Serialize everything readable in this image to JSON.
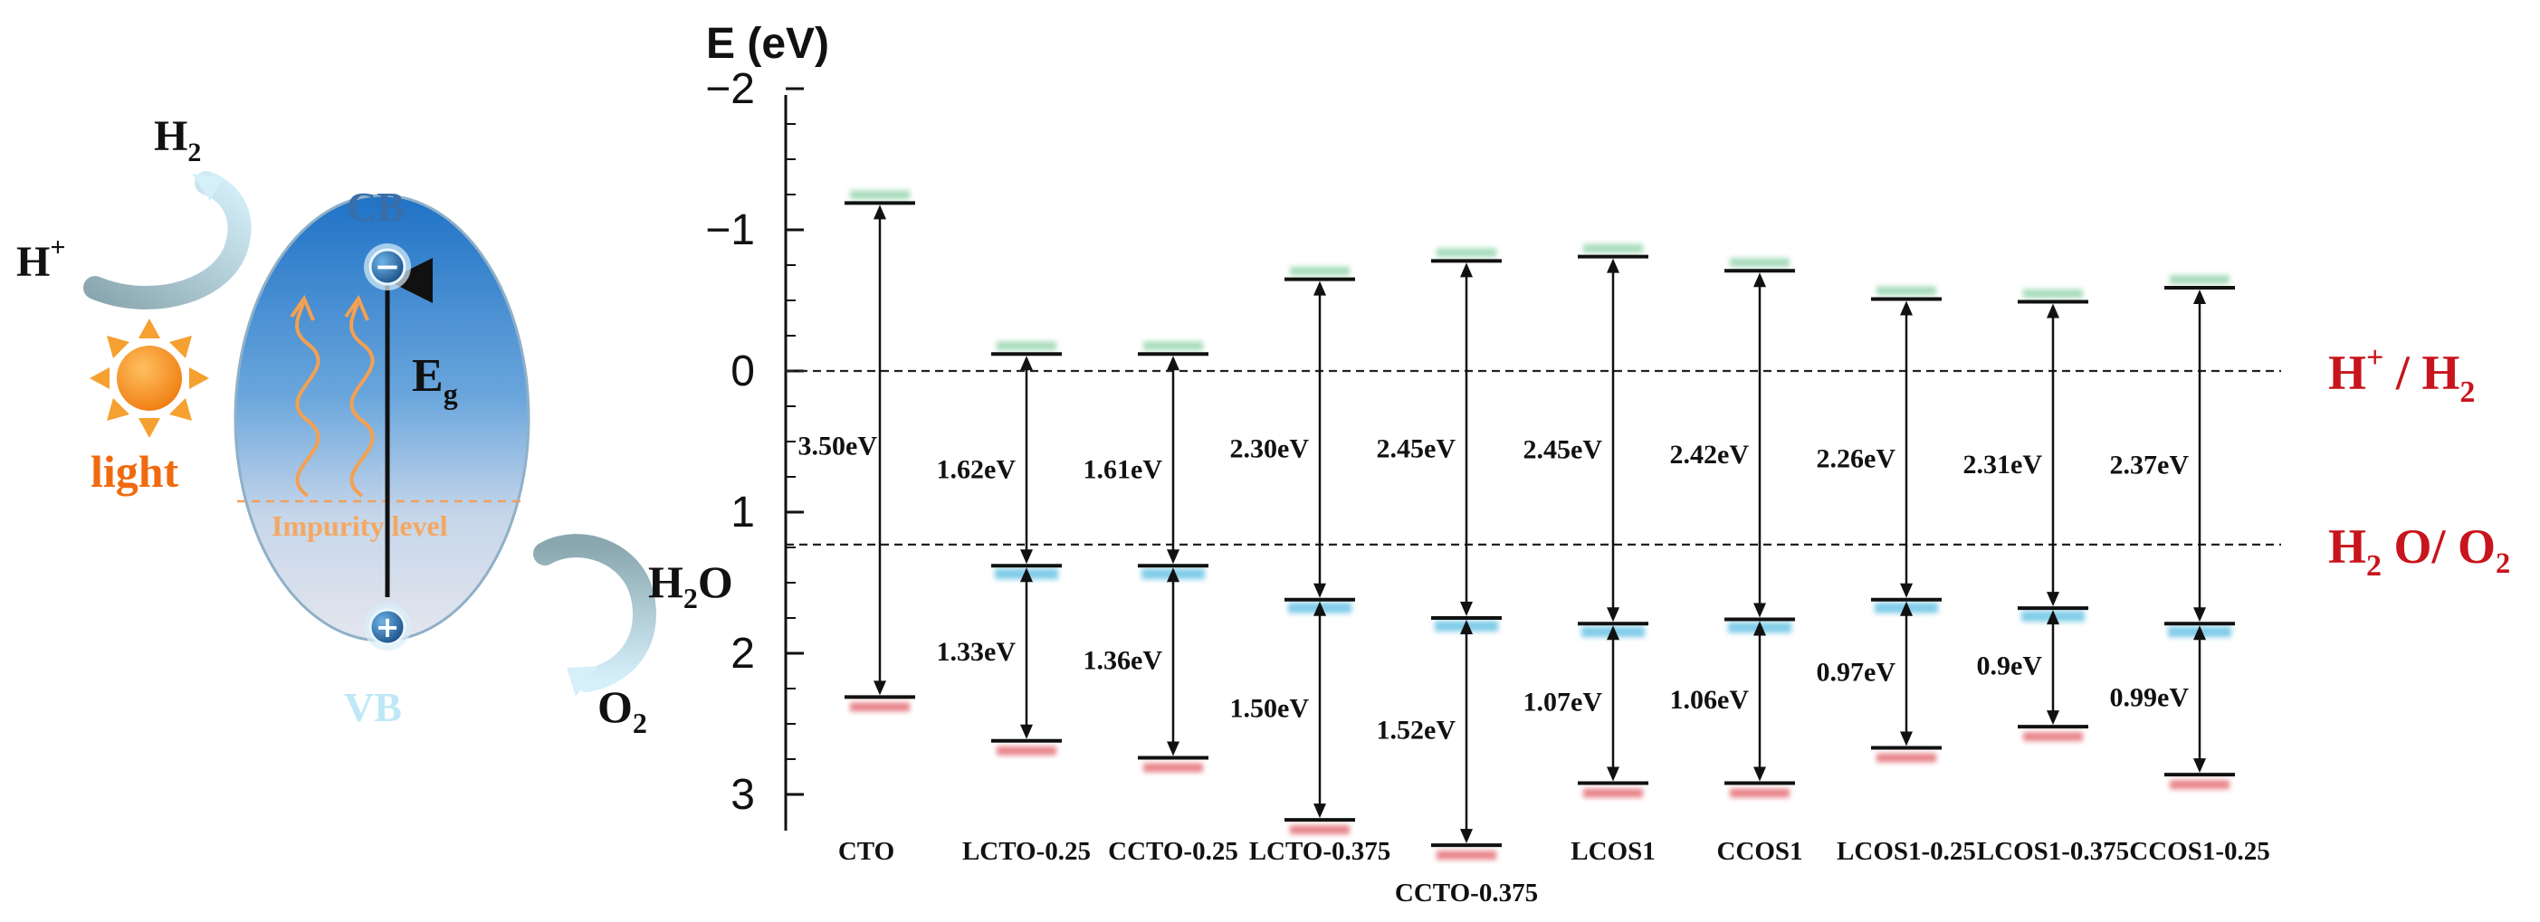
{
  "schematic": {
    "h2": "H",
    "h2_sub": "2",
    "h_plus": "H",
    "h_plus_sup": "+",
    "light": "light",
    "cb": "CB",
    "vb": "VB",
    "eg": "E",
    "eg_sub": "g",
    "impurity": "Impurity level",
    "h2o": "H",
    "h2o_sub": "2",
    "h2o_end": "O",
    "o2": "O",
    "o2_sub": "2",
    "minus_symbol": "−",
    "plus_symbol": "+"
  },
  "axis": {
    "title": "E (eV)",
    "ylim": [
      -2,
      3.25
    ],
    "ticks": [
      {
        "value": -2,
        "label": "−2"
      },
      {
        "value": -1,
        "label": "−1"
      },
      {
        "value": 0,
        "label": "0"
      },
      {
        "value": 1,
        "label": "1"
      },
      {
        "value": 2,
        "label": "2"
      },
      {
        "value": 3,
        "label": "3"
      }
    ]
  },
  "reference_levels": [
    {
      "value": 0,
      "prefix": "H",
      "sup": "+",
      "suffix": " / H",
      "sub": "2",
      "tail": ""
    },
    {
      "value": 1.23,
      "prefix": "H",
      "sup": "",
      "suffix": "",
      "sub": "2",
      "tail": " O/ O₂"
    }
  ],
  "materials": [
    {
      "name": "CTO",
      "cb": -1.19,
      "vb": 2.31,
      "impurity": null,
      "gap_total": "3.50eV",
      "gap_upper": null,
      "gap_lower": null,
      "label_drop": false
    },
    {
      "name": "LCTO-0.25",
      "cb": -0.12,
      "vb": 2.62,
      "impurity": 1.38,
      "gap_total": null,
      "gap_upper": "1.62eV",
      "gap_lower": "1.33eV",
      "label_drop": false
    },
    {
      "name": "CCTO-0.25",
      "cb": -0.12,
      "vb": 2.74,
      "impurity": 1.38,
      "gap_total": null,
      "gap_upper": "1.61eV",
      "gap_lower": "1.36eV",
      "label_drop": false
    },
    {
      "name": "LCTO-0.375",
      "cb": -0.65,
      "vb": 3.18,
      "impurity": 1.62,
      "gap_total": null,
      "gap_upper": "2.30eV",
      "gap_lower": "1.50eV",
      "label_drop": false
    },
    {
      "name": "CCTO-0.375",
      "cb": -0.78,
      "vb": 3.36,
      "impurity": 1.75,
      "gap_total": null,
      "gap_upper": "2.45eV",
      "gap_lower": "1.52eV",
      "label_drop": true
    },
    {
      "name": "LCOS1",
      "cb": -0.81,
      "vb": 2.92,
      "impurity": 1.79,
      "gap_total": null,
      "gap_upper": "2.45eV",
      "gap_lower": "1.07eV",
      "label_drop": false
    },
    {
      "name": "CCOS1",
      "cb": -0.71,
      "vb": 2.92,
      "impurity": 1.76,
      "gap_total": null,
      "gap_upper": "2.42eV",
      "gap_lower": "1.06eV",
      "label_drop": false
    },
    {
      "name": "LCOS1-0.25",
      "cb": -0.51,
      "vb": 2.67,
      "impurity": 1.62,
      "gap_total": null,
      "gap_upper": "2.26eV",
      "gap_lower": "0.97eV",
      "label_drop": false
    },
    {
      "name": "LCOS1-0.375",
      "cb": -0.49,
      "vb": 2.52,
      "impurity": 1.68,
      "gap_total": null,
      "gap_upper": "2.31eV",
      "gap_lower": "0.9eV",
      "label_drop": false
    },
    {
      "name": "CCOS1-0.25",
      "cb": -0.59,
      "vb": 2.86,
      "impurity": 1.79,
      "gap_total": null,
      "gap_upper": "2.37eV",
      "gap_lower": "0.99eV",
      "label_drop": false
    }
  ],
  "colors": {
    "cb_shade": "#a8dcbc",
    "vb_shade": "#e8848a",
    "imp_shade": "#80cce8",
    "ref_red": "#c8141c",
    "light_orange": "#f06a10"
  }
}
